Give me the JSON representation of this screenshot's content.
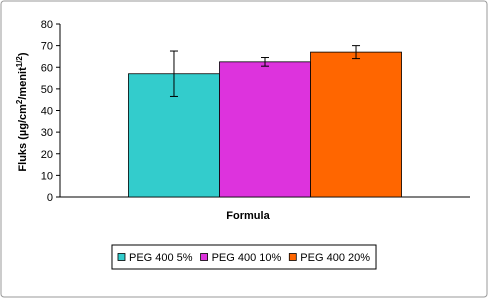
{
  "chart_data": {
    "type": "bar",
    "ylabel": [
      "Fluks (µg/cm",
      "2",
      "/menit",
      "1/2",
      ")"
    ],
    "xlabel": "Formula",
    "categories": [
      null
    ],
    "series": [
      {
        "name": "PEG 400 5%",
        "color": "#33cccc",
        "values": [
          57
        ],
        "errors": [
          10.5
        ]
      },
      {
        "name": "PEG 400 10%",
        "color": "#dd33dd",
        "values": [
          62.5
        ],
        "errors": [
          2
        ]
      },
      {
        "name": "PEG 400 20%",
        "color": "#ff6600",
        "values": [
          67
        ],
        "errors": [
          3
        ]
      }
    ],
    "ylim": [
      0,
      80
    ],
    "yticks": [
      0,
      10,
      20,
      30,
      40,
      50,
      60,
      70,
      80
    ],
    "grid": false,
    "legend": "bottom"
  }
}
